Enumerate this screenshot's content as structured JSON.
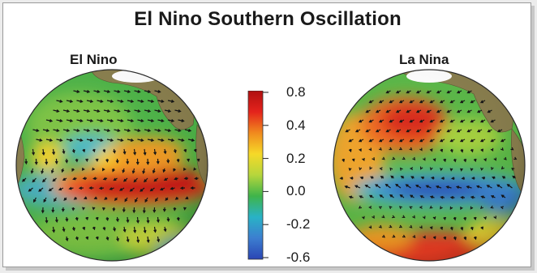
{
  "title": "El Nino Southern Oscillation",
  "panels": [
    {
      "label": "El Nino",
      "pattern": "el-nino"
    },
    {
      "label": "La Nina",
      "pattern": "la-nina"
    }
  ],
  "colorbar": {
    "tick_labels": [
      "0.8",
      "0.4",
      "0.2",
      "0.0",
      "-0.2",
      "-0.6"
    ],
    "colors": [
      "#b00f10",
      "#e4231c",
      "#f08a1e",
      "#f6d928",
      "#b6d63c",
      "#3fb44a",
      "#29b2c6",
      "#3c7ed0",
      "#2a45b4"
    ]
  }
}
